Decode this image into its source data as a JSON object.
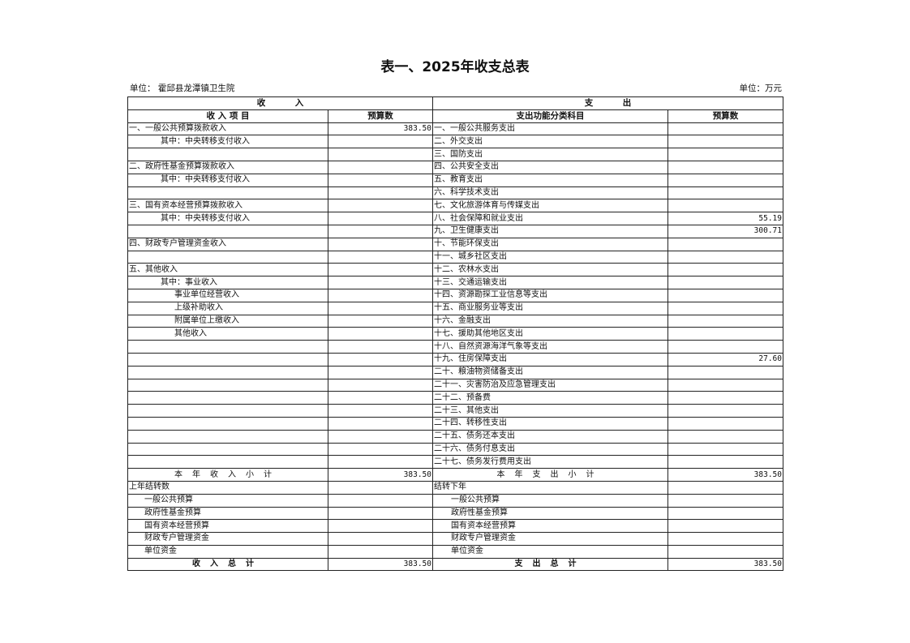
{
  "title": "表一、2025年收支总表",
  "unit_left": "单位：  霍邱县龙潭镇卫生院",
  "unit_right": "单位：万元",
  "header": {
    "income": "收          入",
    "expense": "支          出",
    "income_item": "收 入 项 目",
    "income_budget": "预算数",
    "expense_item": "支出功能分类科目",
    "expense_budget": "预算数"
  },
  "rows": [
    {
      "income": "一、一般公共预算拨款收入",
      "indent": 0,
      "income_value": "383.50",
      "expense": "一、一般公共服务支出",
      "expense_value": ""
    },
    {
      "income": "其中：中央转移支付收入",
      "indent": 1,
      "income_value": "",
      "expense": "二、外交支出",
      "expense_value": ""
    },
    {
      "income": "",
      "indent": 0,
      "income_value": "",
      "expense": "三、国防支出",
      "expense_value": ""
    },
    {
      "income": "二、政府性基金预算拨款收入",
      "indent": 0,
      "income_value": "",
      "expense": "四、公共安全支出",
      "expense_value": ""
    },
    {
      "income": "其中：中央转移支付收入",
      "indent": 1,
      "income_value": "",
      "expense": "五、教育支出",
      "expense_value": ""
    },
    {
      "income": "",
      "indent": 0,
      "income_value": "",
      "expense": "六、科学技术支出",
      "expense_value": ""
    },
    {
      "income": "三、国有资本经营预算拨款收入",
      "indent": 0,
      "income_value": "",
      "expense": "七、文化旅游体育与传媒支出",
      "expense_value": ""
    },
    {
      "income": "其中：中央转移支付收入",
      "indent": 1,
      "income_value": "",
      "expense": "八、社会保障和就业支出",
      "expense_value": "55.19"
    },
    {
      "income": "",
      "indent": 0,
      "income_value": "",
      "expense": "九、卫生健康支出",
      "expense_value": "300.71"
    },
    {
      "income": "四、财政专户管理资金收入",
      "indent": 0,
      "income_value": "",
      "expense": "十、节能环保支出",
      "expense_value": ""
    },
    {
      "income": "",
      "indent": 0,
      "income_value": "",
      "expense": "十一、城乡社区支出",
      "expense_value": ""
    },
    {
      "income": "五、其他收入",
      "indent": 0,
      "income_value": "",
      "expense": "十二、农林水支出",
      "expense_value": ""
    },
    {
      "income": "其中：事业收入",
      "indent": 1,
      "income_value": "",
      "expense": "十三、交通运输支出",
      "expense_value": ""
    },
    {
      "income": "事业单位经营收入",
      "indent": 2,
      "income_value": "",
      "expense": "十四、资源勘探工业信息等支出",
      "expense_value": ""
    },
    {
      "income": "上级补助收入",
      "indent": 2,
      "income_value": "",
      "expense": "十五、商业服务业等支出",
      "expense_value": ""
    },
    {
      "income": "附属单位上缴收入",
      "indent": 2,
      "income_value": "",
      "expense": "十六、金融支出",
      "expense_value": ""
    },
    {
      "income": "其他收入",
      "indent": 2,
      "income_value": "",
      "expense": "十七、援助其他地区支出",
      "expense_value": ""
    },
    {
      "income": "",
      "indent": 0,
      "income_value": "",
      "expense": "十八、自然资源海洋气象等支出",
      "expense_value": ""
    },
    {
      "income": "",
      "indent": 0,
      "income_value": "",
      "expense": "十九、住房保障支出",
      "expense_value": "27.60"
    },
    {
      "income": "",
      "indent": 0,
      "income_value": "",
      "expense": "二十、粮油物资储备支出",
      "expense_value": ""
    },
    {
      "income": "",
      "indent": 0,
      "income_value": "",
      "expense": "二十一、灾害防治及应急管理支出",
      "expense_value": ""
    },
    {
      "income": "",
      "indent": 0,
      "income_value": "",
      "expense": "二十二、预备费",
      "expense_value": ""
    },
    {
      "income": "",
      "indent": 0,
      "income_value": "",
      "expense": "二十三、其他支出",
      "expense_value": ""
    },
    {
      "income": "",
      "indent": 0,
      "income_value": "",
      "expense": "二十四、转移性支出",
      "expense_value": ""
    },
    {
      "income": "",
      "indent": 0,
      "income_value": "",
      "expense": "二十五、债务还本支出",
      "expense_value": ""
    },
    {
      "income": "",
      "indent": 0,
      "income_value": "",
      "expense": "二十六、债务付息支出",
      "expense_value": ""
    },
    {
      "income": "",
      "indent": 0,
      "income_value": "",
      "expense": "二十七、债务发行费用支出",
      "expense_value": ""
    }
  ],
  "subtotal": {
    "income": "本年收入小计",
    "income_value": "383.50",
    "expense": "本年支出小计",
    "expense_value": "383.50"
  },
  "carry_rows": [
    {
      "income": "上年结转数",
      "indent": 0,
      "income_value": "",
      "expense": "结转下年",
      "expense_value": ""
    },
    {
      "income": "一般公共预算",
      "indent": 1,
      "income_value": "",
      "expense": "一般公共预算",
      "expense_value": ""
    },
    {
      "income": "政府性基金预算",
      "indent": 1,
      "income_value": "",
      "expense": "政府性基金预算",
      "expense_value": ""
    },
    {
      "income": "国有资本经营预算",
      "indent": 1,
      "income_value": "",
      "expense": "国有资本经营预算",
      "expense_value": ""
    },
    {
      "income": "财政专户管理资金",
      "indent": 1,
      "income_value": "",
      "expense": "财政专户管理资金",
      "expense_value": ""
    },
    {
      "income": "单位资金",
      "indent": 1,
      "income_value": "",
      "expense": "单位资金",
      "expense_value": ""
    }
  ],
  "total": {
    "income": "收入总计",
    "income_value": "383.50",
    "expense": "支出总计",
    "expense_value": "383.50"
  }
}
